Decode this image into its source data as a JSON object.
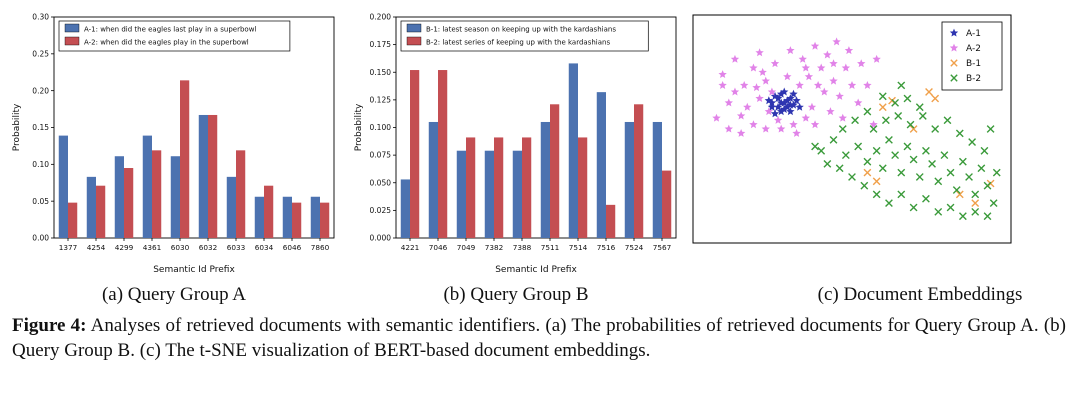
{
  "figure": {
    "subcaptions": [
      "(a) Query Group A",
      "(b) Query Group B",
      "(c) Document Embeddings"
    ],
    "caption_label": "Figure 4:",
    "caption_text": "Analyses of retrieved documents with semantic identifiers. (a) The probabilities of retrieved documents for Query Group A. (b) Query Group B. (c) The t-SNE visualization of BERT-based document embeddings."
  },
  "chart_data": [
    {
      "type": "bar",
      "title": "(a) Query Group A",
      "xlabel": "Semantic Id Prefix",
      "ylabel": "Probability",
      "ylim": [
        0,
        0.3
      ],
      "ytick_step": 0.05,
      "ytick_decimals": 2,
      "grid": false,
      "legend_position": "top-left",
      "categories": [
        "1377",
        "4254",
        "4299",
        "4361",
        "6030",
        "6032",
        "6033",
        "6034",
        "6046",
        "7860"
      ],
      "series": [
        {
          "name": "A-1: when did the eagles last play in a superbowl",
          "color": "#4C72B0",
          "values": [
            0.139,
            0.083,
            0.111,
            0.139,
            0.111,
            0.167,
            0.083,
            0.056,
            0.056,
            0.056
          ]
        },
        {
          "name": "A-2: when did the eagles play in the superbowl",
          "color": "#C44E52",
          "values": [
            0.048,
            0.071,
            0.095,
            0.119,
            0.214,
            0.167,
            0.119,
            0.071,
            0.048,
            0.048
          ]
        }
      ]
    },
    {
      "type": "bar",
      "title": "(b) Query Group B",
      "xlabel": "Semantic Id Prefix",
      "ylabel": "Probability",
      "ylim": [
        0,
        0.2
      ],
      "ytick_step": 0.025,
      "ytick_decimals": 3,
      "grid": false,
      "legend_position": "top-left",
      "categories": [
        "4221",
        "7046",
        "7049",
        "7382",
        "7388",
        "7511",
        "7514",
        "7516",
        "7524",
        "7567"
      ],
      "series": [
        {
          "name": "B-1: latest season on keeping up with the kardashians",
          "color": "#4C72B0",
          "values": [
            0.053,
            0.105,
            0.079,
            0.079,
            0.079,
            0.105,
            0.158,
            0.132,
            0.105,
            0.105
          ]
        },
        {
          "name": "B-2: latest series of keeping up with the kardashians",
          "color": "#C44E52",
          "values": [
            0.152,
            0.152,
            0.091,
            0.091,
            0.091,
            0.121,
            0.091,
            0.03,
            0.121,
            0.061
          ]
        }
      ]
    },
    {
      "type": "scatter",
      "title": "(c) Document Embeddings",
      "legend_position": "top-right",
      "axes_visible": false,
      "series": [
        {
          "name": "A-1",
          "marker": "star",
          "color": "#2E35B0",
          "points": [
            [
              25,
              35
            ],
            [
              28,
              33
            ],
            [
              30,
              36
            ],
            [
              27,
              38
            ],
            [
              24,
              40
            ],
            [
              29,
              40
            ],
            [
              31,
              39
            ],
            [
              26,
              36
            ],
            [
              28,
              41
            ],
            [
              32,
              37
            ],
            [
              23,
              37
            ],
            [
              27,
              34
            ],
            [
              30,
              42
            ],
            [
              25,
              43
            ],
            [
              29,
              37
            ],
            [
              31,
              34
            ],
            [
              26,
              40
            ],
            [
              28,
              38
            ],
            [
              24,
              38
            ],
            [
              33,
              40
            ],
            [
              27,
              42
            ],
            [
              30,
              39
            ]
          ]
        },
        {
          "name": "A-2",
          "marker": "star",
          "color": "#E183E8",
          "points": [
            [
              8,
              25
            ],
            [
              12,
              18
            ],
            [
              15,
              30
            ],
            [
              10,
              38
            ],
            [
              6,
              45
            ],
            [
              14,
              44
            ],
            [
              18,
              22
            ],
            [
              20,
              15
            ],
            [
              22,
              28
            ],
            [
              25,
              20
            ],
            [
              30,
              14
            ],
            [
              34,
              18
            ],
            [
              38,
              12
            ],
            [
              42,
              16
            ],
            [
              45,
              10
            ],
            [
              40,
              22
            ],
            [
              36,
              26
            ],
            [
              33,
              30
            ],
            [
              44,
              28
            ],
            [
              48,
              22
            ],
            [
              50,
              30
            ],
            [
              46,
              35
            ],
            [
              41,
              33
            ],
            [
              37,
              40
            ],
            [
              35,
              45
            ],
            [
              31,
              48
            ],
            [
              26,
              46
            ],
            [
              22,
              50
            ],
            [
              18,
              48
            ],
            [
              14,
              52
            ],
            [
              10,
              50
            ],
            [
              16,
              40
            ],
            [
              20,
              36
            ],
            [
              24,
              33
            ],
            [
              29,
              26
            ],
            [
              43,
              42
            ],
            [
              47,
              45
            ],
            [
              52,
              38
            ],
            [
              55,
              30
            ],
            [
              53,
              20
            ],
            [
              49,
              14
            ],
            [
              12,
              33
            ],
            [
              8,
              30
            ],
            [
              19,
              31
            ],
            [
              23,
              42
            ],
            [
              27,
              50
            ],
            [
              32,
              52
            ],
            [
              38,
              48
            ],
            [
              21,
              24
            ],
            [
              35,
              22
            ],
            [
              39,
              30
            ],
            [
              44,
              20
            ],
            [
              58,
              18
            ],
            [
              57,
              48
            ]
          ]
        },
        {
          "name": "B-1",
          "marker": "x",
          "color": "#F0A04A",
          "points": [
            [
              60,
              40
            ],
            [
              63,
              37
            ],
            [
              75,
              33
            ],
            [
              77,
              36
            ],
            [
              55,
              70
            ],
            [
              58,
              74
            ],
            [
              85,
              80
            ],
            [
              90,
              84
            ],
            [
              95,
              75
            ],
            [
              70,
              50
            ]
          ]
        },
        {
          "name": "B-2",
          "marker": "x",
          "color": "#3A9A3A",
          "points": [
            [
              40,
              60
            ],
            [
              44,
              55
            ],
            [
              48,
              62
            ],
            [
              52,
              58
            ],
            [
              55,
              65
            ],
            [
              58,
              60
            ],
            [
              60,
              68
            ],
            [
              62,
              55
            ],
            [
              64,
              62
            ],
            [
              66,
              70
            ],
            [
              68,
              58
            ],
            [
              70,
              64
            ],
            [
              72,
              72
            ],
            [
              74,
              60
            ],
            [
              76,
              66
            ],
            [
              78,
              74
            ],
            [
              80,
              62
            ],
            [
              82,
              70
            ],
            [
              84,
              78
            ],
            [
              86,
              65
            ],
            [
              88,
              72
            ],
            [
              90,
              80
            ],
            [
              92,
              68
            ],
            [
              94,
              76
            ],
            [
              96,
              84
            ],
            [
              58,
              80
            ],
            [
              62,
              84
            ],
            [
              66,
              80
            ],
            [
              70,
              86
            ],
            [
              74,
              82
            ],
            [
              78,
              88
            ],
            [
              82,
              86
            ],
            [
              86,
              90
            ],
            [
              90,
              88
            ],
            [
              94,
              90
            ],
            [
              50,
              72
            ],
            [
              54,
              76
            ],
            [
              46,
              68
            ],
            [
              42,
              66
            ],
            [
              38,
              58
            ],
            [
              57,
              50
            ],
            [
              61,
              46
            ],
            [
              65,
              44
            ],
            [
              69,
              48
            ],
            [
              73,
              44
            ],
            [
              77,
              50
            ],
            [
              81,
              46
            ],
            [
              85,
              52
            ],
            [
              89,
              56
            ],
            [
              93,
              60
            ],
            [
              55,
              42
            ],
            [
              51,
              46
            ],
            [
              47,
              50
            ],
            [
              97,
              70
            ],
            [
              95,
              50
            ],
            [
              60,
              35
            ],
            [
              64,
              38
            ],
            [
              68,
              36
            ],
            [
              72,
              40
            ],
            [
              66,
              30
            ]
          ]
        }
      ]
    }
  ]
}
